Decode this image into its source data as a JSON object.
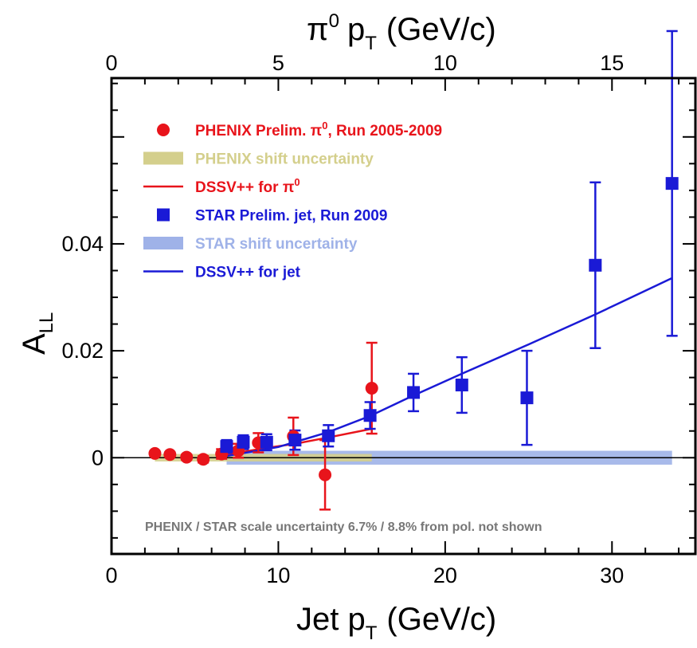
{
  "chart_data": {
    "type": "scatter",
    "title": "",
    "xlabel": "Jet p",
    "xlabel_sub": "T",
    "xlabel_unit": "(GeV/c)",
    "x2label": "p",
    "x2label_prefix": "π",
    "x2label_sup": "0",
    "x2label_sub": "T",
    "x2label_unit": "(GeV/c)",
    "ylabel": "A",
    "ylabel_sub": "LL",
    "xlim": [
      0,
      35
    ],
    "ylim": [
      -0.018,
      0.071
    ],
    "x2_scale_note": "top axis value = jet pT / 2.0",
    "xticks": [
      0,
      10,
      20,
      30
    ],
    "x2ticks": [
      0,
      5,
      10,
      15
    ],
    "yticks": [
      {
        "value": 0.04,
        "label": "0.04"
      },
      {
        "value": 0.02,
        "label": "0.02"
      },
      {
        "value": 0,
        "label": "0"
      }
    ],
    "legend_position": "top-left",
    "legend": [
      {
        "label": "PHENIX Prelim. π",
        "sup": "0",
        "suffix": ", Run 2005-2009",
        "color": "#e8141b",
        "symbol": "circle"
      },
      {
        "label": "PHENIX shift uncertainty",
        "sup": "",
        "suffix": "",
        "color": "#d4cf8c",
        "symbol": "band"
      },
      {
        "label": "DSSV++ for π",
        "sup": "0",
        "suffix": "",
        "color": "#e8141b",
        "symbol": "line"
      },
      {
        "label": "STAR Prelim. jet, Run 2009",
        "sup": "",
        "suffix": "",
        "color": "#1a1ad6",
        "symbol": "square"
      },
      {
        "label": "STAR shift uncertainty",
        "sup": "",
        "suffix": "",
        "color": "#9fb2e8",
        "symbol": "band"
      },
      {
        "label": "DSSV++ for jet",
        "sup": "",
        "suffix": "",
        "color": "#1a1ad6",
        "symbol": "line"
      }
    ],
    "note": "PHENIX / STAR scale uncertainty 6.7% / 8.8% from pol. not shown",
    "series": [
      {
        "name": "PHENIX Prelim. π0, Run 2005-2009",
        "color": "#e8141b",
        "marker": "circle",
        "points": [
          {
            "x": 2.6,
            "y": 0.0008,
            "err": 0.0004
          },
          {
            "x": 3.5,
            "y": 0.0006,
            "err": 0.0004
          },
          {
            "x": 4.5,
            "y": 0.0001,
            "err": 0.0005
          },
          {
            "x": 5.5,
            "y": -0.0003,
            "err": 0.0006
          },
          {
            "x": 6.6,
            "y": 0.0007,
            "err": 0.0009
          },
          {
            "x": 7.6,
            "y": 0.0013,
            "err": 0.0013
          },
          {
            "x": 8.8,
            "y": 0.0028,
            "err": 0.0018
          },
          {
            "x": 10.9,
            "y": 0.004,
            "err": 0.0035
          },
          {
            "x": 12.8,
            "y": -0.0032,
            "err": 0.0065
          },
          {
            "x": 15.6,
            "y": 0.013,
            "err": 0.0085
          }
        ]
      },
      {
        "name": "STAR Prelim. jet, Run 2009",
        "color": "#1a1ad6",
        "marker": "square",
        "points": [
          {
            "x": 6.9,
            "y": 0.0021,
            "err": 0.0012
          },
          {
            "x": 7.9,
            "y": 0.0029,
            "err": 0.0013
          },
          {
            "x": 9.3,
            "y": 0.0029,
            "err": 0.0015
          },
          {
            "x": 11.0,
            "y": 0.0033,
            "err": 0.0018
          },
          {
            "x": 13.0,
            "y": 0.0041,
            "err": 0.002
          },
          {
            "x": 15.5,
            "y": 0.0079,
            "err": 0.0025
          },
          {
            "x": 18.1,
            "y": 0.0122,
            "err": 0.0035
          },
          {
            "x": 21.0,
            "y": 0.0136,
            "err": 0.0052
          },
          {
            "x": 24.9,
            "y": 0.0112,
            "err": 0.0088
          },
          {
            "x": 29.0,
            "y": 0.036,
            "err": 0.0155
          },
          {
            "x": 33.6,
            "y": 0.0513,
            "err": 0.0285
          }
        ]
      }
    ],
    "bands": [
      {
        "name": "PHENIX shift uncertainty",
        "color": "#d4cf8c",
        "x": [
          2.6,
          15.6
        ],
        "y": [
          -0.0007,
          0.0007
        ]
      },
      {
        "name": "STAR shift uncertainty",
        "color": "#9fb2e8",
        "x": [
          6.9,
          33.6
        ],
        "y": [
          -0.0013,
          0.0013
        ]
      }
    ],
    "curves": [
      {
        "name": "DSSV++ for π0",
        "color": "#e8141b",
        "x": [
          6.6,
          9,
          11,
          13,
          15.6
        ],
        "y": [
          0.0004,
          0.0017,
          0.0026,
          0.0038,
          0.0054
        ]
      },
      {
        "name": "DSSV++ for jet",
        "color": "#1a1ad6",
        "x": [
          6.9,
          10,
          13,
          15.5,
          18,
          21,
          25,
          29,
          33.6
        ],
        "y": [
          0.0003,
          0.002,
          0.0048,
          0.0078,
          0.0115,
          0.0157,
          0.0212,
          0.0268,
          0.0336
        ]
      }
    ]
  }
}
